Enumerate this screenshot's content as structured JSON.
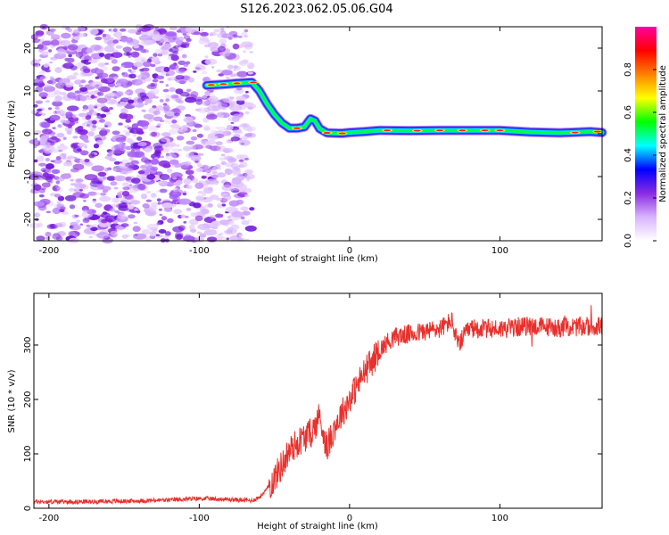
{
  "figure_title": "S126.2023.062.05.06.G04",
  "chart_data": [
    {
      "type": "heatmap",
      "title": "",
      "xlabel": "Height of straight line (km)",
      "ylabel": "Frequency (Hz)",
      "xlim": [
        -210,
        168
      ],
      "ylim": [
        -25,
        25
      ],
      "xticks": [
        -200,
        -100,
        0,
        100
      ],
      "yticks": [
        -20,
        -10,
        0,
        10,
        20
      ],
      "colorbar": {
        "label": "Normalized spectral amplitude",
        "range": [
          0,
          1
        ],
        "ticks": [
          0.0,
          0.2,
          0.4,
          0.6,
          0.8
        ],
        "colors": [
          "#ffffff",
          "#d9b3ff",
          "#8a2be2",
          "#0000ff",
          "#00ffff",
          "#00ff00",
          "#ffff00",
          "#ff8000",
          "#ff0000",
          "#ff00a0"
        ]
      },
      "noise_region_x": [
        -210,
        -65
      ],
      "peak_track": [
        {
          "x": -95,
          "y": 11.3
        },
        {
          "x": -85,
          "y": 11.5
        },
        {
          "x": -75,
          "y": 11.8
        },
        {
          "x": -65,
          "y": 12.0
        },
        {
          "x": -60,
          "y": 10.0
        },
        {
          "x": -55,
          "y": 7.0
        },
        {
          "x": -50,
          "y": 4.5
        },
        {
          "x": -45,
          "y": 2.5
        },
        {
          "x": -40,
          "y": 1.3
        },
        {
          "x": -35,
          "y": 1.3
        },
        {
          "x": -30,
          "y": 1.6
        },
        {
          "x": -26,
          "y": 3.5
        },
        {
          "x": -23,
          "y": 3.0
        },
        {
          "x": -20,
          "y": 1.2
        },
        {
          "x": -15,
          "y": 0.2
        },
        {
          "x": -5,
          "y": 0.1
        },
        {
          "x": 0,
          "y": 0.3
        },
        {
          "x": 10,
          "y": 0.5
        },
        {
          "x": 20,
          "y": 0.8
        },
        {
          "x": 40,
          "y": 0.7
        },
        {
          "x": 60,
          "y": 0.8
        },
        {
          "x": 80,
          "y": 0.8
        },
        {
          "x": 100,
          "y": 0.8
        },
        {
          "x": 120,
          "y": 0.4
        },
        {
          "x": 140,
          "y": 0.2
        },
        {
          "x": 160,
          "y": 0.5
        },
        {
          "x": 168,
          "y": 0.3
        }
      ]
    },
    {
      "type": "line",
      "title": "",
      "xlabel": "Height of straight line (km)",
      "ylabel": "SNR (10 * v/v)",
      "xlim": [
        -210,
        168
      ],
      "ylim": [
        0,
        395
      ],
      "xticks": [
        -200,
        -100,
        0,
        100
      ],
      "yticks": [
        0,
        100,
        200,
        300
      ],
      "grid": false,
      "series": [
        {
          "color": "#e8302c",
          "points": [
            {
              "x": -210,
              "y": 12
            },
            {
              "x": -180,
              "y": 12
            },
            {
              "x": -150,
              "y": 13
            },
            {
              "x": -120,
              "y": 15
            },
            {
              "x": -100,
              "y": 18
            },
            {
              "x": -80,
              "y": 16
            },
            {
              "x": -65,
              "y": 14
            },
            {
              "x": -60,
              "y": 20
            },
            {
              "x": -55,
              "y": 35
            },
            {
              "x": -50,
              "y": 55
            },
            {
              "x": -45,
              "y": 80
            },
            {
              "x": -40,
              "y": 105
            },
            {
              "x": -35,
              "y": 120
            },
            {
              "x": -30,
              "y": 130
            },
            {
              "x": -25,
              "y": 140
            },
            {
              "x": -20,
              "y": 170
            },
            {
              "x": -15,
              "y": 110
            },
            {
              "x": -10,
              "y": 150
            },
            {
              "x": -5,
              "y": 175
            },
            {
              "x": 0,
              "y": 200
            },
            {
              "x": 5,
              "y": 225
            },
            {
              "x": 10,
              "y": 250
            },
            {
              "x": 15,
              "y": 270
            },
            {
              "x": 20,
              "y": 290
            },
            {
              "x": 25,
              "y": 305
            },
            {
              "x": 30,
              "y": 315
            },
            {
              "x": 40,
              "y": 320
            },
            {
              "x": 50,
              "y": 325
            },
            {
              "x": 60,
              "y": 330
            },
            {
              "x": 68,
              "y": 345
            },
            {
              "x": 72,
              "y": 300
            },
            {
              "x": 80,
              "y": 330
            },
            {
              "x": 100,
              "y": 330
            },
            {
              "x": 120,
              "y": 335
            },
            {
              "x": 140,
              "y": 332
            },
            {
              "x": 168,
              "y": 335
            }
          ]
        }
      ]
    }
  ]
}
